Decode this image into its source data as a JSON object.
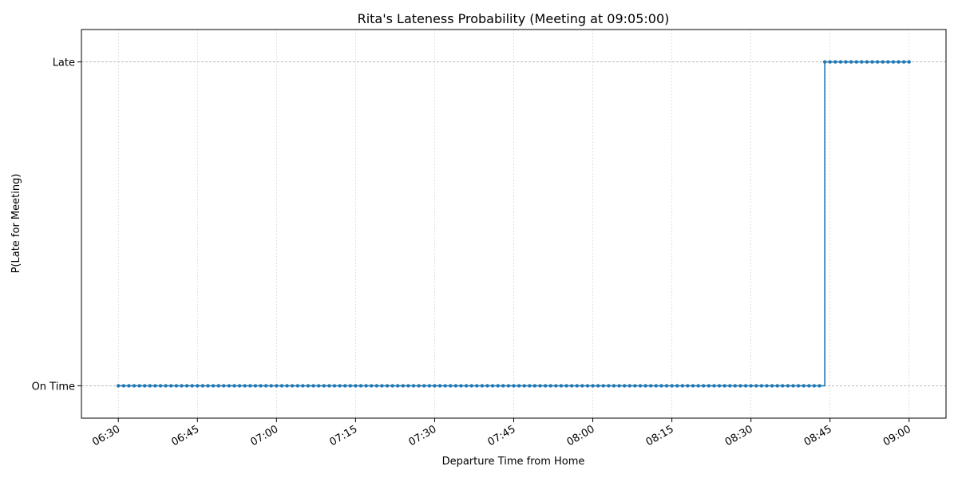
{
  "chart_data": {
    "type": "line",
    "title": "Rita's Lateness Probability (Meeting at 09:05:00)",
    "xlabel": "Departure Time from Home",
    "ylabel": "P(Late for Meeting)",
    "x_start": "06:30",
    "x_end": "09:00",
    "x_step_minutes": 1,
    "xlim": [
      "06:23",
      "09:07"
    ],
    "x_ticks": [
      "06:30",
      "06:45",
      "07:00",
      "07:15",
      "07:30",
      "07:45",
      "08:00",
      "08:15",
      "08:30",
      "08:45",
      "09:00"
    ],
    "y_ticks": [
      {
        "value": 0,
        "label": "On Time"
      },
      {
        "value": 1,
        "label": "Late"
      }
    ],
    "ylim": [
      -0.1,
      1.1
    ],
    "grid": true,
    "series": [
      {
        "first_late_departure": "08:44",
        "values_rule": "0 for departures before 08:44, 1 from 08:44 through 09:00",
        "color": "#1f77b4",
        "marker": "circle",
        "drawstyle": "steps-post"
      }
    ]
  }
}
